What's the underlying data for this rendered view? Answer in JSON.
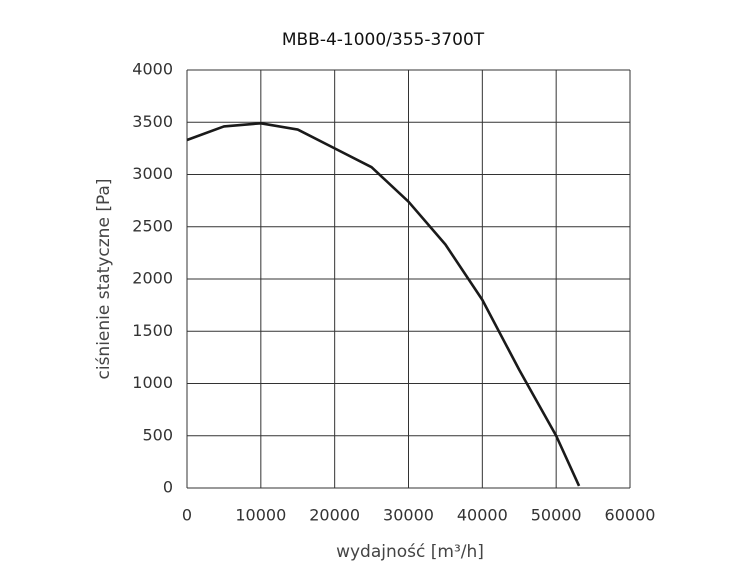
{
  "chart_data": {
    "type": "line",
    "title": "MBB-4-1000/355-3700T",
    "xlabel": "wydajność [m³/h]",
    "ylabel": "ciśnienie statyczne [Pa]",
    "x": [
      0,
      5000,
      10000,
      15000,
      20000,
      25000,
      30000,
      35000,
      40000,
      45000,
      50000,
      53100
    ],
    "series": [
      {
        "name": "MBB-4-1000/355-3700T",
        "color": "#1a1a1a",
        "values": [
          3330,
          3460,
          3490,
          3430,
          3250,
          3070,
          2740,
          2330,
          1800,
          1130,
          500,
          20
        ]
      }
    ],
    "xlim": [
      0,
      60000
    ],
    "xticks": [
      0,
      10000,
      20000,
      30000,
      40000,
      50000,
      60000
    ],
    "ylim": [
      0,
      4000
    ],
    "yticks": [
      0,
      500,
      1000,
      1500,
      2000,
      2500,
      3000,
      3500,
      4000
    ],
    "grid": true
  }
}
